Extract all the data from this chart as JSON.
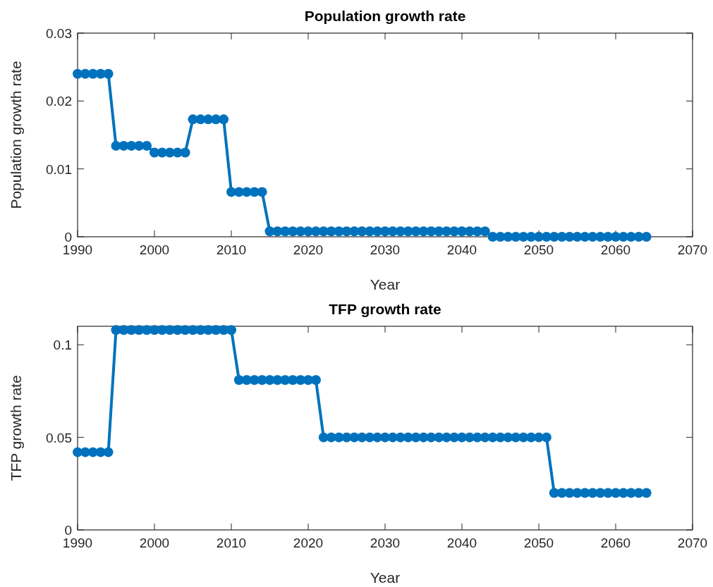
{
  "chart_data": [
    {
      "type": "line",
      "title": "Population growth rate",
      "xlabel": "Year",
      "ylabel": "Population growth rate",
      "marker": "circle",
      "line_style": "solid",
      "grid": false,
      "x": [
        1990,
        1991,
        1992,
        1993,
        1994,
        1995,
        1996,
        1997,
        1998,
        1999,
        2000,
        2001,
        2002,
        2003,
        2004,
        2005,
        2006,
        2007,
        2008,
        2009,
        2010,
        2011,
        2012,
        2013,
        2014,
        2015,
        2016,
        2017,
        2018,
        2019,
        2020,
        2021,
        2022,
        2023,
        2024,
        2025,
        2026,
        2027,
        2028,
        2029,
        2030,
        2031,
        2032,
        2033,
        2034,
        2035,
        2036,
        2037,
        2038,
        2039,
        2040,
        2041,
        2042,
        2043,
        2044,
        2045,
        2046,
        2047,
        2048,
        2049,
        2050,
        2051,
        2052,
        2053,
        2054,
        2055,
        2056,
        2057,
        2058,
        2059,
        2060,
        2061,
        2062,
        2063,
        2064
      ],
      "series": [
        {
          "color": "#0072bd",
          "values": [
            0.024,
            0.024,
            0.024,
            0.024,
            0.024,
            0.0134,
            0.0134,
            0.0134,
            0.0134,
            0.0134,
            0.0124,
            0.0124,
            0.0124,
            0.0124,
            0.0124,
            0.0173,
            0.0173,
            0.0173,
            0.0173,
            0.0173,
            0.0066,
            0.0066,
            0.0066,
            0.0066,
            0.0066,
            0.0008,
            0.0008,
            0.0008,
            0.0008,
            0.0008,
            0.0008,
            0.0008,
            0.0008,
            0.0008,
            0.0008,
            0.0008,
            0.0008,
            0.0008,
            0.0008,
            0.0008,
            0.0008,
            0.0008,
            0.0008,
            0.0008,
            0.0008,
            0.0008,
            0.0008,
            0.0008,
            0.0008,
            0.0008,
            0.0008,
            0.0008,
            0.0008,
            0.0008,
            0,
            0,
            0,
            0,
            0,
            0,
            0,
            0,
            0,
            0,
            0,
            0,
            0,
            0,
            0,
            0,
            0,
            0,
            0,
            0,
            0
          ]
        }
      ],
      "xlim": [
        1990,
        2070
      ],
      "xticks": [
        1990,
        2000,
        2010,
        2020,
        2030,
        2040,
        2050,
        2060,
        2070
      ],
      "ylim": [
        0,
        0.03
      ],
      "yticks": [
        0,
        0.01,
        0.02,
        0.03
      ]
    },
    {
      "type": "line",
      "title": "TFP growth rate",
      "xlabel": "Year",
      "ylabel": "TFP growth rate",
      "marker": "circle",
      "line_style": "solid",
      "grid": false,
      "x": [
        1990,
        1991,
        1992,
        1993,
        1994,
        1995,
        1996,
        1997,
        1998,
        1999,
        2000,
        2001,
        2002,
        2003,
        2004,
        2005,
        2006,
        2007,
        2008,
        2009,
        2010,
        2011,
        2012,
        2013,
        2014,
        2015,
        2016,
        2017,
        2018,
        2019,
        2020,
        2021,
        2022,
        2023,
        2024,
        2025,
        2026,
        2027,
        2028,
        2029,
        2030,
        2031,
        2032,
        2033,
        2034,
        2035,
        2036,
        2037,
        2038,
        2039,
        2040,
        2041,
        2042,
        2043,
        2044,
        2045,
        2046,
        2047,
        2048,
        2049,
        2050,
        2051,
        2052,
        2053,
        2054,
        2055,
        2056,
        2057,
        2058,
        2059,
        2060,
        2061,
        2062,
        2063,
        2064
      ],
      "series": [
        {
          "color": "#0072bd",
          "values": [
            0.042,
            0.042,
            0.042,
            0.042,
            0.042,
            0.108,
            0.108,
            0.108,
            0.108,
            0.108,
            0.108,
            0.108,
            0.108,
            0.108,
            0.108,
            0.108,
            0.108,
            0.108,
            0.108,
            0.108,
            0.108,
            0.081,
            0.081,
            0.081,
            0.081,
            0.081,
            0.081,
            0.081,
            0.081,
            0.081,
            0.081,
            0.081,
            0.05,
            0.05,
            0.05,
            0.05,
            0.05,
            0.05,
            0.05,
            0.05,
            0.05,
            0.05,
            0.05,
            0.05,
            0.05,
            0.05,
            0.05,
            0.05,
            0.05,
            0.05,
            0.05,
            0.05,
            0.05,
            0.05,
            0.05,
            0.05,
            0.05,
            0.05,
            0.05,
            0.05,
            0.05,
            0.05,
            0.02,
            0.02,
            0.02,
            0.02,
            0.02,
            0.02,
            0.02,
            0.02,
            0.02,
            0.02,
            0.02,
            0.02,
            0.02
          ]
        }
      ],
      "xlim": [
        1990,
        2070
      ],
      "xticks": [
        1990,
        2000,
        2010,
        2020,
        2030,
        2040,
        2050,
        2060,
        2070
      ],
      "ylim": [
        0,
        0.11
      ],
      "yticks": [
        0,
        0.05,
        0.1
      ]
    }
  ]
}
